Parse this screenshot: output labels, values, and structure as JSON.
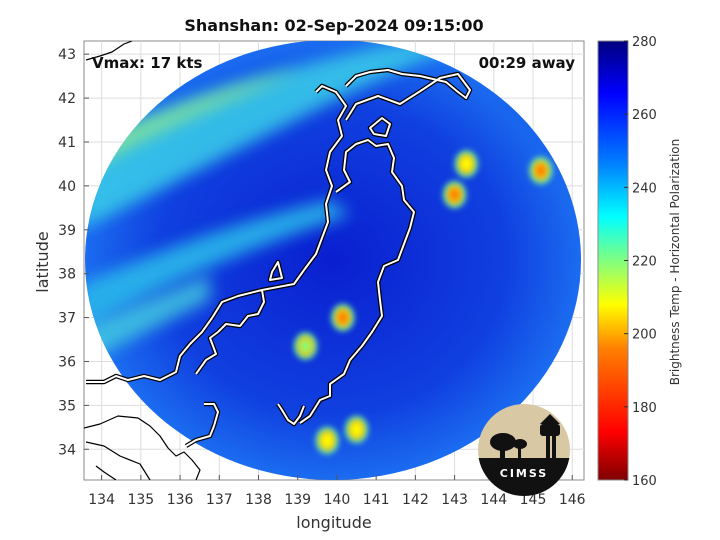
{
  "chart_data": {
    "type": "heatmap",
    "title": "Shanshan: 02-Sep-2024 09:15:00",
    "xlabel": "longitude",
    "ylabel": "latitude",
    "xlim": [
      133.55,
      146.3
    ],
    "ylim": [
      33.3,
      43.3
    ],
    "x_ticks": [
      134,
      135,
      136,
      137,
      138,
      139,
      140,
      141,
      142,
      143,
      144,
      145,
      146
    ],
    "y_ticks": [
      34,
      35,
      36,
      37,
      38,
      39,
      40,
      41,
      42,
      43
    ],
    "grid": true,
    "annotations": {
      "vmax": "Vmax: 17 kts",
      "time_away": "00:29 away"
    },
    "colorbar": {
      "label": "Brightness Temp - Horizontal Polarization",
      "range": [
        160,
        280
      ],
      "ticks": [
        160,
        180,
        200,
        220,
        240,
        260,
        280
      ],
      "colormap": [
        "#7f0000",
        "#ff0000",
        "#ff8000",
        "#ffff00",
        "#80ff80",
        "#00ffff",
        "#0080ff",
        "#0000ff",
        "#00007f"
      ]
    },
    "swath_center": [
      140.1,
      38.5
    ],
    "cold_spots": [
      {
        "lon": 143.0,
        "lat": 39.8,
        "tb": 185
      },
      {
        "lon": 143.3,
        "lat": 40.5,
        "tb": 205
      },
      {
        "lon": 145.2,
        "lat": 40.35,
        "tb": 195
      },
      {
        "lon": 140.15,
        "lat": 37.0,
        "tb": 190
      },
      {
        "lon": 139.2,
        "lat": 36.35,
        "tb": 225
      },
      {
        "lon": 139.75,
        "lat": 34.2,
        "tb": 200
      },
      {
        "lon": 140.5,
        "lat": 34.45,
        "tb": 210
      }
    ]
  },
  "logo": {
    "text": "CIMSS"
  }
}
